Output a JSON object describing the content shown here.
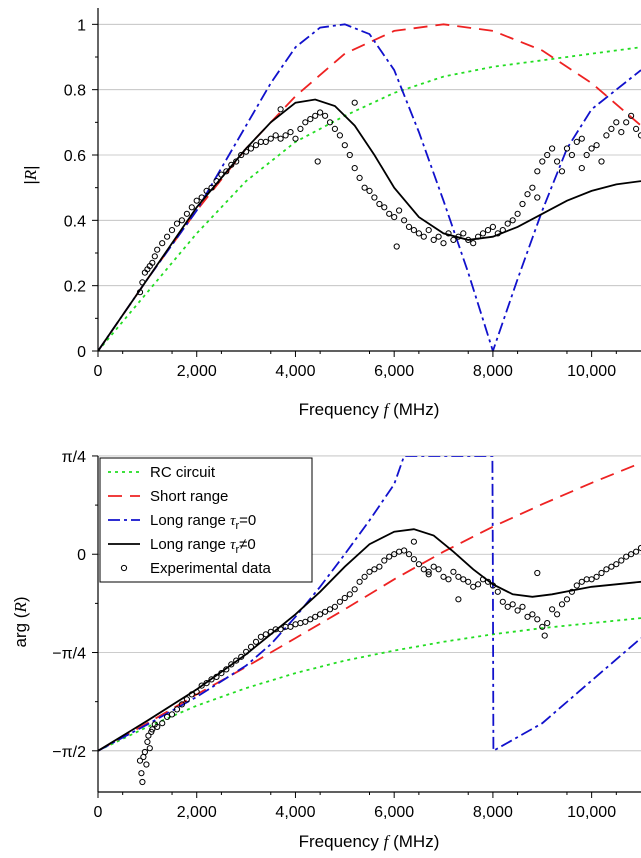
{
  "colors": {
    "rc": "#22dd22",
    "short": "#ee2222",
    "long0": "#1111cc",
    "long": "#000000",
    "exp": "#000000",
    "grid": "#bbbbbb"
  },
  "chart_data": [
    {
      "type": "line",
      "xlabel": "Frequency f (MHz)",
      "ylabel": "|R|",
      "xlim": [
        0,
        11000
      ],
      "ylim": [
        0,
        1.05
      ],
      "grid": "horizontal",
      "xticks": [
        0,
        2000,
        4000,
        6000,
        8000,
        10000
      ],
      "xtick_labels": [
        "0",
        "2,000",
        "4,000",
        "6,000",
        "8,000",
        "10,000"
      ],
      "yticks": [
        0,
        0.2,
        0.4,
        0.6,
        0.8,
        1
      ],
      "ytick_labels": [
        "0",
        "0.2",
        "0.4",
        "0.6",
        "0.8",
        "1"
      ],
      "series": [
        {
          "key": "rc",
          "dash": "3,4",
          "x": [
            0,
            1000,
            2000,
            3000,
            4000,
            5000,
            6000,
            7000,
            8000,
            9000,
            10000,
            11000
          ],
          "y": [
            0,
            0.18,
            0.36,
            0.52,
            0.64,
            0.72,
            0.79,
            0.84,
            0.87,
            0.89,
            0.91,
            0.93
          ]
        },
        {
          "key": "short",
          "dash": "14,8",
          "x": [
            0,
            1000,
            2000,
            3000,
            4000,
            5000,
            6000,
            7000,
            8000,
            9000,
            10000,
            11000
          ],
          "y": [
            0,
            0.22,
            0.43,
            0.62,
            0.78,
            0.91,
            0.98,
            1.0,
            0.98,
            0.92,
            0.82,
            0.69
          ]
        },
        {
          "key": "long0",
          "dash": "12,4,3,4",
          "x": [
            0,
            1000,
            2000,
            3000,
            3500,
            4000,
            4500,
            5000,
            5500,
            6000,
            6500,
            7000,
            7500,
            8000,
            8500,
            9000,
            9500,
            10000,
            10500,
            11000
          ],
          "y": [
            0,
            0.22,
            0.43,
            0.69,
            0.82,
            0.93,
            0.99,
            1.0,
            0.97,
            0.86,
            0.67,
            0.46,
            0.24,
            0.0,
            0.22,
            0.43,
            0.62,
            0.74,
            0.8,
            0.86
          ]
        },
        {
          "key": "long",
          "dash": "",
          "x": [
            0,
            1000,
            2000,
            3000,
            3500,
            4000,
            4400,
            4800,
            5200,
            5600,
            6000,
            6500,
            7000,
            7500,
            8000,
            8500,
            9000,
            9500,
            10000,
            10500,
            11000
          ],
          "y": [
            0,
            0.22,
            0.44,
            0.62,
            0.7,
            0.76,
            0.77,
            0.75,
            0.69,
            0.6,
            0.5,
            0.41,
            0.36,
            0.34,
            0.35,
            0.38,
            0.42,
            0.46,
            0.49,
            0.51,
            0.52
          ]
        }
      ],
      "scatter": {
        "x": [
          850,
          900,
          950,
          1000,
          1050,
          1100,
          1150,
          1200,
          1300,
          1400,
          1500,
          1600,
          1700,
          1800,
          1900,
          2000,
          2100,
          2200,
          2300,
          2400,
          2500,
          2600,
          2700,
          2800,
          2900,
          3000,
          3100,
          3200,
          3300,
          3400,
          3500,
          3600,
          3700,
          3800,
          3900,
          4000,
          4100,
          4200,
          4300,
          4400,
          4500,
          4600,
          4700,
          4800,
          4900,
          5000,
          5100,
          5200,
          5300,
          5400,
          5500,
          5600,
          5700,
          5800,
          5900,
          6000,
          6100,
          6200,
          6300,
          6400,
          6500,
          6600,
          6700,
          6800,
          6900,
          7000,
          7100,
          7200,
          7300,
          7400,
          7500,
          7600,
          7700,
          7800,
          7900,
          8000,
          8100,
          8200,
          8300,
          8400,
          8500,
          8600,
          8700,
          8800,
          8900,
          9000,
          9100,
          9200,
          9300,
          9400,
          9500,
          9600,
          9700,
          9800,
          9900,
          10000,
          10100,
          10200,
          10300,
          10400,
          10500,
          10600,
          10700,
          10800,
          10900,
          11000,
          3700,
          4450,
          5200,
          6050,
          8900,
          9800
        ],
        "y": [
          0.18,
          0.21,
          0.24,
          0.25,
          0.26,
          0.27,
          0.29,
          0.31,
          0.33,
          0.35,
          0.37,
          0.39,
          0.4,
          0.42,
          0.44,
          0.46,
          0.47,
          0.49,
          0.5,
          0.52,
          0.54,
          0.55,
          0.57,
          0.58,
          0.6,
          0.61,
          0.62,
          0.63,
          0.64,
          0.64,
          0.65,
          0.66,
          0.65,
          0.66,
          0.67,
          0.65,
          0.68,
          0.7,
          0.71,
          0.72,
          0.73,
          0.72,
          0.7,
          0.68,
          0.66,
          0.63,
          0.6,
          0.56,
          0.53,
          0.5,
          0.49,
          0.47,
          0.45,
          0.44,
          0.42,
          0.41,
          0.43,
          0.4,
          0.38,
          0.37,
          0.36,
          0.35,
          0.37,
          0.34,
          0.35,
          0.33,
          0.36,
          0.34,
          0.35,
          0.36,
          0.34,
          0.33,
          0.35,
          0.36,
          0.37,
          0.38,
          0.36,
          0.37,
          0.39,
          0.4,
          0.42,
          0.45,
          0.48,
          0.5,
          0.55,
          0.58,
          0.6,
          0.62,
          0.58,
          0.55,
          0.62,
          0.6,
          0.64,
          0.65,
          0.6,
          0.62,
          0.63,
          0.58,
          0.66,
          0.68,
          0.7,
          0.67,
          0.7,
          0.72,
          0.68,
          0.66,
          0.74,
          0.58,
          0.76,
          0.32,
          0.47,
          0.56
        ]
      }
    },
    {
      "type": "line",
      "xlabel": "Frequency f (MHz)",
      "ylabel": "arg (R)",
      "xlim": [
        0,
        11000
      ],
      "ylim": [
        -1.9,
        0.785
      ],
      "grid": "horizontal",
      "xticks": [
        0,
        2000,
        4000,
        6000,
        8000,
        10000
      ],
      "xtick_labels": [
        "0",
        "2,000",
        "4,000",
        "6,000",
        "8,000",
        "10,000"
      ],
      "yticks": [
        -1.5708,
        -0.7854,
        0,
        0.7854
      ],
      "ytick_labels": [
        "−π/2",
        "−π/4",
        "0",
        "π/4"
      ],
      "legend": {
        "position": "top-left",
        "entries": [
          {
            "key": "rc",
            "label": "RC circuit"
          },
          {
            "key": "short",
            "label": "Short range"
          },
          {
            "key": "long0",
            "label_main": "Long range ",
            "label_tau": "τ",
            "label_sub": "r",
            "label_tail": "=0"
          },
          {
            "key": "long",
            "label_main": "Long range ",
            "label_tau": "τ",
            "label_sub": "r",
            "label_tail": "≠0"
          },
          {
            "key": "exp",
            "label": "Experimental data"
          }
        ]
      },
      "series": [
        {
          "key": "rc",
          "dash": "3,4",
          "x": [
            0,
            1000,
            2000,
            3000,
            4000,
            5000,
            6000,
            7000,
            8000,
            9000,
            10000,
            11000
          ],
          "y": [
            -1.571,
            -1.38,
            -1.21,
            -1.07,
            -0.95,
            -0.85,
            -0.77,
            -0.7,
            -0.64,
            -0.59,
            -0.55,
            -0.51
          ]
        },
        {
          "key": "short",
          "dash": "14,8",
          "x": [
            0,
            1000,
            2000,
            3000,
            4000,
            5000,
            6000,
            7000,
            8000,
            9000,
            10000,
            11000
          ],
          "y": [
            -1.571,
            -1.35,
            -1.12,
            -0.9,
            -0.67,
            -0.44,
            -0.2,
            0.02,
            0.22,
            0.4,
            0.57,
            0.73
          ]
        },
        {
          "key": "long0",
          "dash": "12,4,3,4",
          "x": [
            0,
            1000,
            2000,
            3000,
            3500,
            4000,
            4500,
            5000,
            5500,
            6000,
            6200,
            7000,
            7990,
            8000,
            8010,
            9000,
            10000,
            11000
          ],
          "y": [
            -1.571,
            -1.36,
            -1.14,
            -0.89,
            -0.72,
            -0.5,
            -0.26,
            0.0,
            0.27,
            0.56,
            0.785,
            0.785,
            0.785,
            -0.2,
            -1.571,
            -1.35,
            -1.01,
            -0.67
          ]
        },
        {
          "key": "long",
          "dash": "",
          "x": [
            0,
            1000,
            2000,
            3000,
            4000,
            4500,
            5000,
            5500,
            6000,
            6400,
            6800,
            7200,
            7600,
            8000,
            8400,
            8800,
            9200,
            9600,
            10000,
            10500,
            11000
          ],
          "y": [
            -1.571,
            -1.33,
            -1.08,
            -0.8,
            -0.48,
            -0.3,
            -0.1,
            0.08,
            0.18,
            0.2,
            0.15,
            0.02,
            -0.12,
            -0.24,
            -0.32,
            -0.34,
            -0.32,
            -0.29,
            -0.26,
            -0.24,
            -0.22
          ]
        }
      ],
      "scatter": {
        "x": [
          850,
          880,
          900,
          920,
          950,
          980,
          1000,
          1020,
          1050,
          1080,
          1100,
          1150,
          1200,
          1300,
          1400,
          1500,
          1600,
          1700,
          1800,
          1900,
          2000,
          2100,
          2200,
          2300,
          2400,
          2500,
          2600,
          2700,
          2800,
          2900,
          3000,
          3100,
          3200,
          3300,
          3400,
          3500,
          3600,
          3700,
          3800,
          3900,
          4000,
          4100,
          4200,
          4300,
          4400,
          4500,
          4600,
          4700,
          4800,
          4900,
          5000,
          5100,
          5200,
          5300,
          5400,
          5500,
          5600,
          5700,
          5800,
          5900,
          6000,
          6100,
          6200,
          6300,
          6400,
          6500,
          6600,
          6700,
          6800,
          6900,
          7000,
          7100,
          7200,
          7300,
          7400,
          7500,
          7600,
          7700,
          7800,
          7900,
          8000,
          8100,
          8200,
          8300,
          8400,
          8500,
          8600,
          8700,
          8800,
          8900,
          9000,
          9100,
          9200,
          9300,
          9400,
          9500,
          9600,
          9700,
          9800,
          9900,
          10000,
          10100,
          10200,
          10300,
          10400,
          10500,
          10600,
          10700,
          10800,
          10900,
          11000,
          6400,
          6700,
          7300,
          8900,
          9050
        ],
        "y": [
          -1.65,
          -1.75,
          -1.82,
          -1.62,
          -1.58,
          -1.68,
          -1.5,
          -1.45,
          -1.55,
          -1.42,
          -1.4,
          -1.36,
          -1.38,
          -1.35,
          -1.3,
          -1.28,
          -1.24,
          -1.2,
          -1.16,
          -1.12,
          -1.1,
          -1.05,
          -1.03,
          -1.0,
          -0.98,
          -0.95,
          -0.92,
          -0.88,
          -0.85,
          -0.82,
          -0.78,
          -0.74,
          -0.7,
          -0.66,
          -0.64,
          -0.62,
          -0.6,
          -0.6,
          -0.58,
          -0.58,
          -0.56,
          -0.55,
          -0.54,
          -0.52,
          -0.5,
          -0.48,
          -0.46,
          -0.44,
          -0.42,
          -0.38,
          -0.35,
          -0.32,
          -0.28,
          -0.22,
          -0.18,
          -0.14,
          -0.12,
          -0.1,
          -0.05,
          -0.02,
          0.0,
          0.02,
          0.03,
          0.0,
          -0.04,
          -0.08,
          -0.12,
          -0.16,
          -0.1,
          -0.12,
          -0.18,
          -0.2,
          -0.14,
          -0.18,
          -0.2,
          -0.22,
          -0.26,
          -0.24,
          -0.2,
          -0.22,
          -0.25,
          -0.3,
          -0.38,
          -0.42,
          -0.4,
          -0.45,
          -0.42,
          -0.5,
          -0.48,
          -0.52,
          -0.58,
          -0.55,
          -0.44,
          -0.48,
          -0.4,
          -0.36,
          -0.3,
          -0.25,
          -0.22,
          -0.2,
          -0.2,
          -0.18,
          -0.15,
          -0.12,
          -0.1,
          -0.08,
          -0.05,
          -0.02,
          0.0,
          0.02,
          0.05,
          0.1,
          -0.14,
          -0.36,
          -0.15,
          -0.65
        ]
      }
    }
  ]
}
